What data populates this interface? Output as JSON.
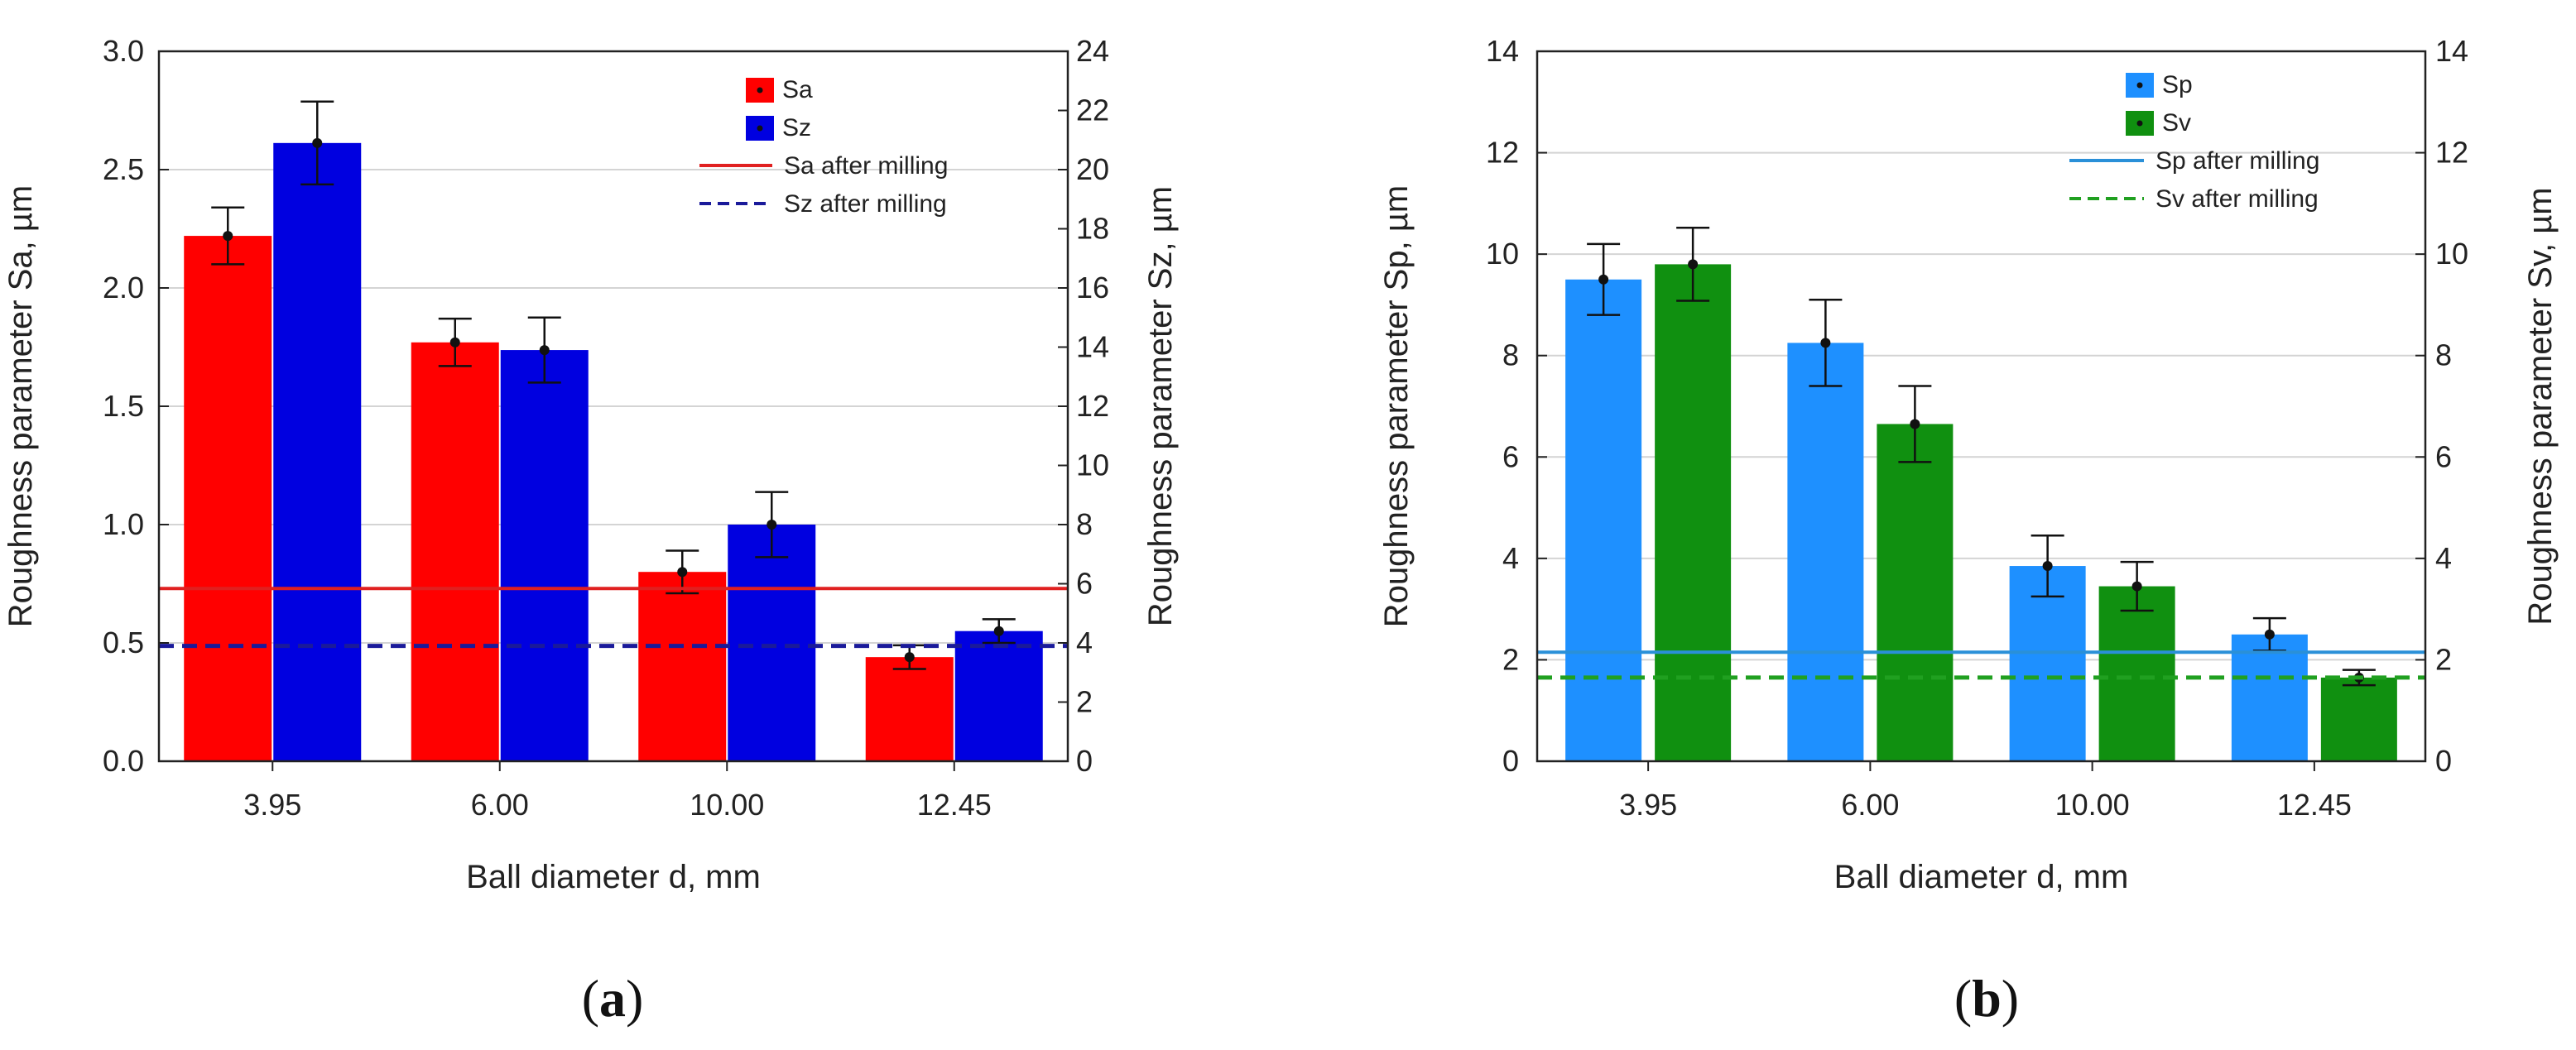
{
  "chart_data": [
    {
      "type": "bar",
      "panel_label": "a",
      "categories": [
        "3.95",
        "6.00",
        "10.00",
        "12.45"
      ],
      "xlabel": "Ball diameter d, mm",
      "ylabel_left": "Roughness parameter Sa, µm",
      "ylabel_right": "Roughness parameter Sz, µm",
      "ylim_left": [
        0,
        3.0
      ],
      "yticks_left": [
        "0.0",
        "0.5",
        "1.0",
        "1.5",
        "2.0",
        "2.5",
        "3.0"
      ],
      "ylim_right": [
        0,
        24
      ],
      "yticks_right": [
        "0",
        "2",
        "4",
        "6",
        "8",
        "10",
        "12",
        "14",
        "16",
        "18",
        "20",
        "22",
        "24"
      ],
      "grid": true,
      "legend_position": "top-right",
      "series": [
        {
          "name": "Sa",
          "axis": "left",
          "color": "#ff0000",
          "values": [
            2.22,
            1.77,
            0.8,
            0.44
          ],
          "errors": [
            0.12,
            0.1,
            0.09,
            0.05
          ]
        },
        {
          "name": "Sz",
          "axis": "right",
          "color": "#0000e0",
          "values": [
            20.9,
            13.9,
            8.0,
            4.4
          ],
          "errors": [
            1.4,
            1.1,
            1.1,
            0.4
          ]
        }
      ],
      "reference_lines": [
        {
          "name": "Sa after milling",
          "axis": "left",
          "value": 0.73,
          "color": "#e02020",
          "style": "solid"
        },
        {
          "name": "Sz after milling",
          "axis": "right",
          "value": 3.9,
          "color": "#1a1a9a",
          "style": "dashed"
        }
      ]
    },
    {
      "type": "bar",
      "panel_label": "b",
      "categories": [
        "3.95",
        "6.00",
        "10.00",
        "12.45"
      ],
      "xlabel": "Ball diameter d, mm",
      "ylabel_left": "Roughness parameter Sp, µm",
      "ylabel_right": "Roughness parameter Sv, µm",
      "ylim_left": [
        0,
        14
      ],
      "yticks_left": [
        "0",
        "2",
        "4",
        "6",
        "8",
        "10",
        "12",
        "14"
      ],
      "ylim_right": [
        0,
        14
      ],
      "yticks_right": [
        "0",
        "2",
        "4",
        "6",
        "8",
        "10",
        "12",
        "14"
      ],
      "grid": true,
      "legend_position": "top-right",
      "series": [
        {
          "name": "Sp",
          "axis": "left",
          "color": "#1e90ff",
          "values": [
            9.5,
            8.25,
            3.85,
            2.5
          ],
          "errors": [
            0.7,
            0.85,
            0.6,
            0.32
          ]
        },
        {
          "name": "Sv",
          "axis": "right",
          "color": "#109010",
          "values": [
            9.8,
            6.65,
            3.45,
            1.65
          ],
          "errors": [
            0.72,
            0.75,
            0.48,
            0.15
          ]
        }
      ],
      "reference_lines": [
        {
          "name": "Sp after milling",
          "axis": "left",
          "value": 2.15,
          "color": "#2a90d8",
          "style": "solid"
        },
        {
          "name": "Sv after milling",
          "axis": "right",
          "value": 1.65,
          "color": "#20a020",
          "style": "dashed"
        }
      ]
    }
  ]
}
